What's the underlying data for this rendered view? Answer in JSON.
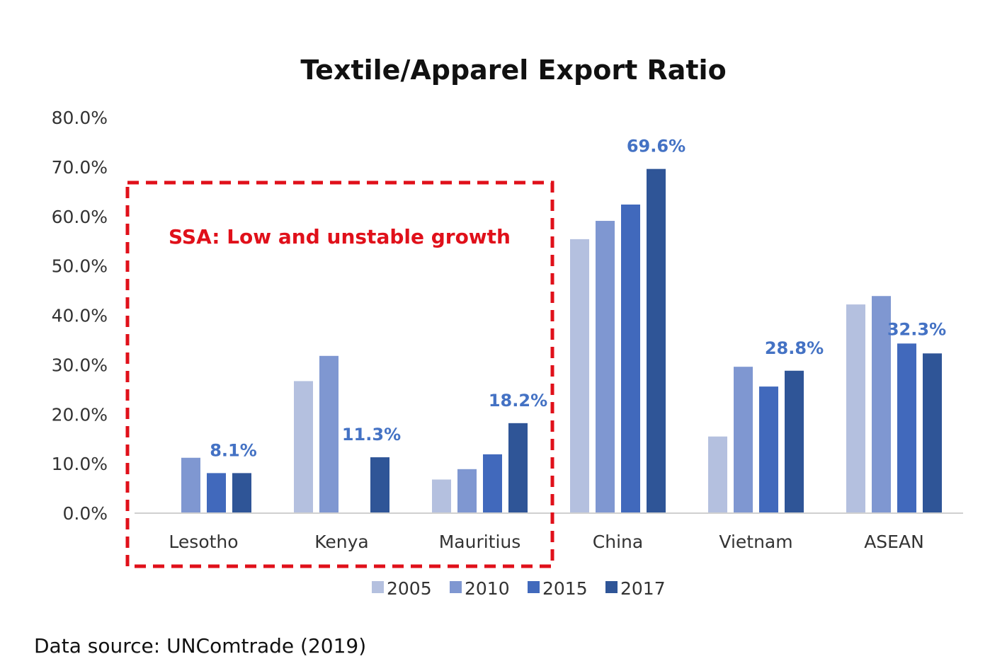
{
  "chart_data": {
    "type": "bar",
    "title": "Textile/Apparel Export Ratio",
    "categories": [
      "Lesotho",
      "Kenya",
      "Mauritius",
      "China",
      "Vietnam",
      "ASEAN"
    ],
    "series": [
      {
        "name": "2005",
        "color": "#B4C0DF",
        "values": [
          null,
          26.7,
          6.8,
          55.4,
          15.5,
          42.2
        ]
      },
      {
        "name": "2010",
        "color": "#7F97D1",
        "values": [
          11.2,
          31.8,
          8.9,
          59.1,
          29.6,
          43.9
        ]
      },
      {
        "name": "2015",
        "color": "#4169BC",
        "values": [
          8.1,
          null,
          11.9,
          62.4,
          25.6,
          34.3
        ]
      },
      {
        "name": "2017",
        "color": "#2F5597",
        "values": [
          8.1,
          11.3,
          18.2,
          69.6,
          28.8,
          32.3
        ]
      }
    ],
    "data_labels": [
      {
        "category": "Lesotho",
        "series": "2017",
        "text": "8.1%"
      },
      {
        "category": "Kenya",
        "series": "2017",
        "text": "11.3%"
      },
      {
        "category": "Mauritius",
        "series": "2017",
        "text": "18.2%"
      },
      {
        "category": "China",
        "series": "2017",
        "text": "69.6%"
      },
      {
        "category": "Vietnam",
        "series": "2017",
        "text": "28.8%"
      },
      {
        "category": "ASEAN",
        "series": "2017",
        "text": "32.3%"
      }
    ],
    "yticks": [
      "0.0%",
      "10.0%",
      "20.0%",
      "30.0%",
      "40.0%",
      "50.0%",
      "60.0%",
      "70.0%",
      "80.0%"
    ],
    "ylim": [
      0,
      80
    ],
    "xlabel": "",
    "ylabel": "",
    "legend_position": "bottom",
    "grid": false,
    "annotation": {
      "text": "SSA: Low and unstable growth",
      "spans_categories": [
        "Lesotho",
        "Kenya",
        "Mauritius"
      ],
      "color": "#E0101A"
    }
  },
  "source_note": "Data source: UNComtrade (2019)"
}
